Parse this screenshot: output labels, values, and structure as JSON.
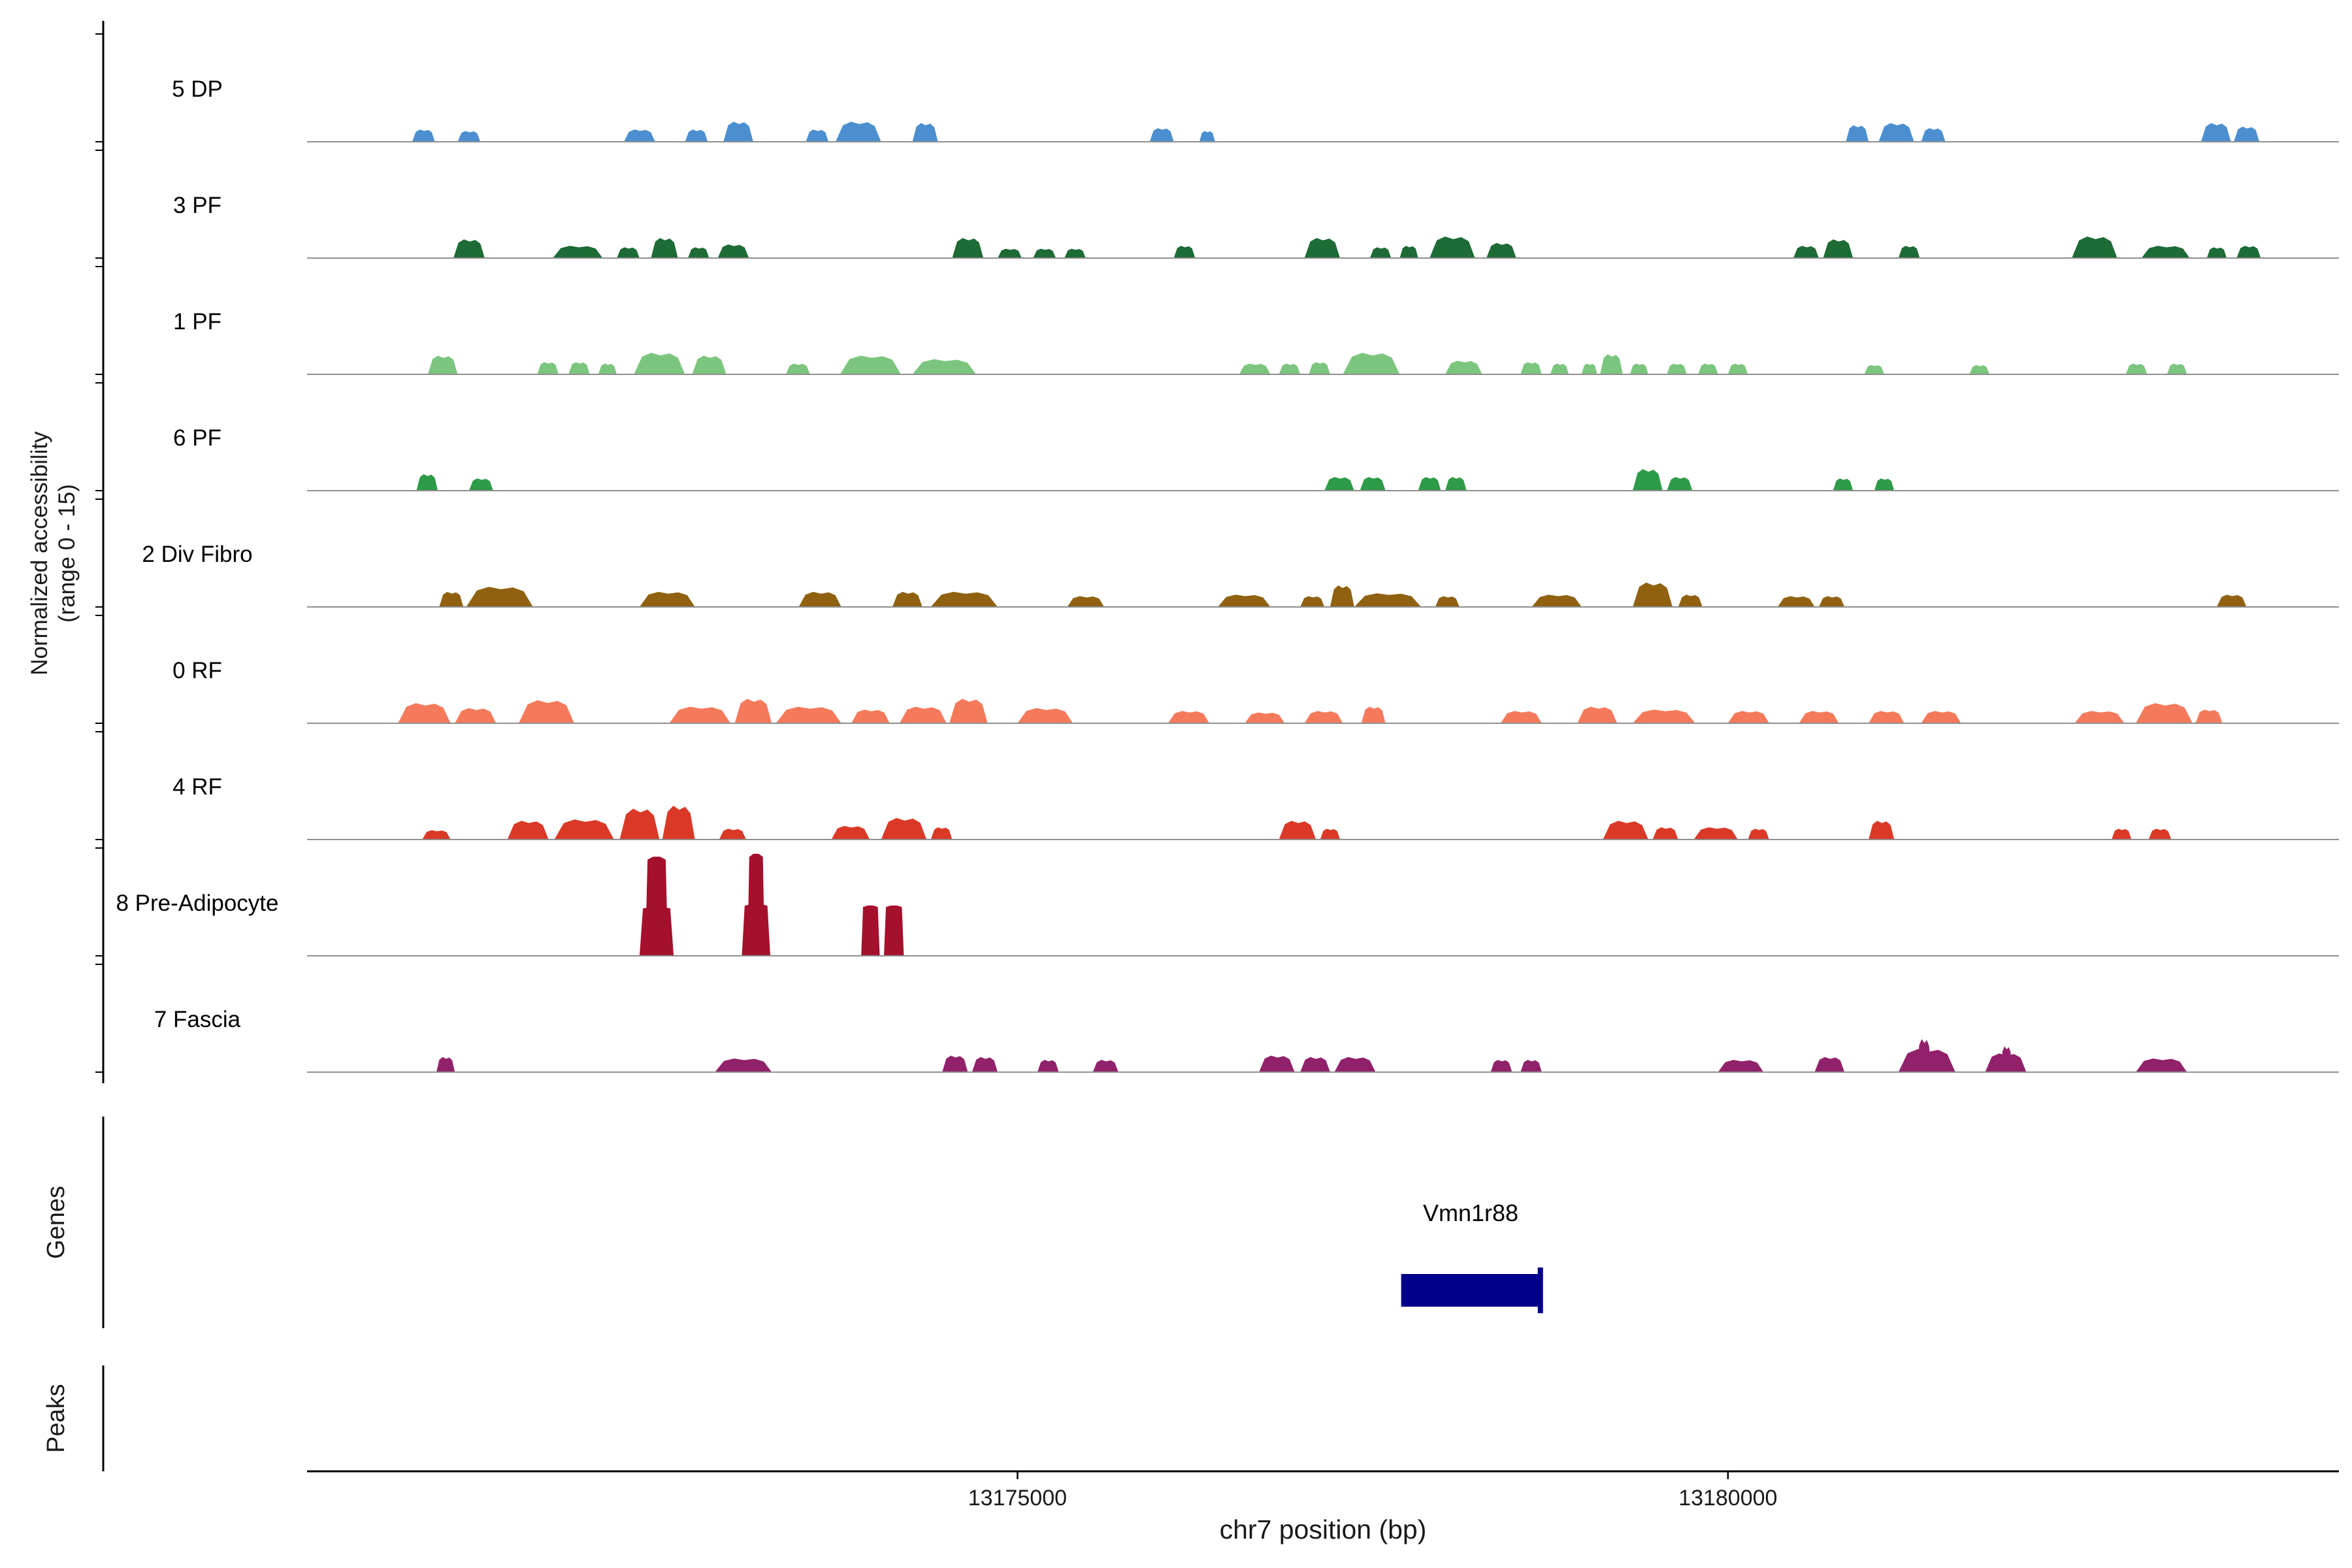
{
  "figure": {
    "y_axis_title_line1": "Normalized accessibility",
    "y_axis_title_line2": "(range 0 - 15)",
    "genes_section_label": "Genes",
    "peaks_section_label": "Peaks"
  },
  "x_axis": {
    "title": "chr7 position (bp)",
    "ticks": [
      {
        "bp": 13175000,
        "label": "13175000"
      },
      {
        "bp": 13180000,
        "label": "13180000"
      }
    ]
  },
  "chart_data": {
    "type": "area",
    "subtype": "genome-coverage-tracks",
    "chromosome": "chr7",
    "xlabel": "chr7 position (bp)",
    "ylabel": "Normalized accessibility (range 0 - 15)",
    "x_range": [
      13170000,
      13184300
    ],
    "y_range_per_track": [
      0,
      15
    ],
    "baseline_color": "#8f8f8f",
    "gene_color": "#00008B",
    "tracks": [
      {
        "label": "5 DP",
        "color": "#4B8FD0",
        "peaks": [
          [
            13170740,
            13170900,
            1.7
          ],
          [
            13171060,
            13171220,
            1.5
          ],
          [
            13172230,
            13172450,
            1.7
          ],
          [
            13172660,
            13172820,
            1.7
          ],
          [
            13172930,
            13173140,
            2.8
          ],
          [
            13173510,
            13173670,
            1.7
          ],
          [
            13173720,
            13174040,
            2.8
          ],
          [
            13174260,
            13174440,
            2.6
          ],
          [
            13175930,
            13176100,
            1.9
          ],
          [
            13176280,
            13176390,
            1.5
          ],
          [
            13180830,
            13180990,
            2.3
          ],
          [
            13181060,
            13181310,
            2.6
          ],
          [
            13181360,
            13181530,
            1.9
          ],
          [
            13183330,
            13183540,
            2.6
          ],
          [
            13183560,
            13183740,
            2.1
          ]
        ]
      },
      {
        "label": "3 PF",
        "color": "#1D6B35",
        "peaks": [
          [
            13171030,
            13171250,
            2.6
          ],
          [
            13171730,
            13172080,
            1.7
          ],
          [
            13172180,
            13172340,
            1.5
          ],
          [
            13172420,
            13172610,
            2.8
          ],
          [
            13172680,
            13172830,
            1.5
          ],
          [
            13172890,
            13173110,
            1.9
          ],
          [
            13174540,
            13174760,
            2.8
          ],
          [
            13174860,
            13175030,
            1.3
          ],
          [
            13175110,
            13175270,
            1.3
          ],
          [
            13175330,
            13175480,
            1.3
          ],
          [
            13176100,
            13176250,
            1.7
          ],
          [
            13177020,
            13177270,
            2.8
          ],
          [
            13177480,
            13177630,
            1.5
          ],
          [
            13177690,
            13177820,
            1.7
          ],
          [
            13177900,
            13178220,
            3.0
          ],
          [
            13178300,
            13178510,
            2.1
          ],
          [
            13180460,
            13180640,
            1.7
          ],
          [
            13180670,
            13180880,
            2.6
          ],
          [
            13181200,
            13181350,
            1.7
          ],
          [
            13182420,
            13182740,
            3.0
          ],
          [
            13182910,
            13183250,
            1.7
          ],
          [
            13183370,
            13183510,
            1.5
          ],
          [
            13183580,
            13183750,
            1.7
          ]
        ]
      },
      {
        "label": "1 PF",
        "color": "#7CC57E",
        "peaks": [
          [
            13170850,
            13171060,
            2.6
          ],
          [
            13171620,
            13171770,
            1.7
          ],
          [
            13171840,
            13171990,
            1.7
          ],
          [
            13172050,
            13172180,
            1.5
          ],
          [
            13172300,
            13172660,
            3.0
          ],
          [
            13172710,
            13172950,
            2.6
          ],
          [
            13173370,
            13173540,
            1.5
          ],
          [
            13173750,
            13174180,
            2.6
          ],
          [
            13174260,
            13174710,
            2.1
          ],
          [
            13176560,
            13176780,
            1.5
          ],
          [
            13176840,
            13176990,
            1.5
          ],
          [
            13177050,
            13177200,
            1.7
          ],
          [
            13177290,
            13177690,
            3.0
          ],
          [
            13178010,
            13178270,
            1.9
          ],
          [
            13178540,
            13178690,
            1.7
          ],
          [
            13178750,
            13178880,
            1.5
          ],
          [
            13178970,
            13179080,
            1.5
          ],
          [
            13179100,
            13179260,
            2.8
          ],
          [
            13179310,
            13179440,
            1.5
          ],
          [
            13179570,
            13179710,
            1.5
          ],
          [
            13179790,
            13179930,
            1.5
          ],
          [
            13180000,
            13180140,
            1.5
          ],
          [
            13180960,
            13181100,
            1.3
          ],
          [
            13181700,
            13181840,
            1.3
          ],
          [
            13182800,
            13182950,
            1.5
          ],
          [
            13183090,
            13183230,
            1.5
          ]
        ]
      },
      {
        "label": "6 PF",
        "color": "#2D9B47",
        "peaks": [
          [
            13170770,
            13170920,
            2.3
          ],
          [
            13171140,
            13171310,
            1.7
          ],
          [
            13177160,
            13177370,
            1.9
          ],
          [
            13177410,
            13177590,
            1.9
          ],
          [
            13177820,
            13177980,
            1.9
          ],
          [
            13178010,
            13178160,
            1.9
          ],
          [
            13179330,
            13179540,
            3.0
          ],
          [
            13179570,
            13179750,
            1.9
          ],
          [
            13180740,
            13180880,
            1.7
          ],
          [
            13181030,
            13181170,
            1.7
          ]
        ]
      },
      {
        "label": "2 Div Fibro",
        "color": "#8F6110",
        "peaks": [
          [
            13170930,
            13171100,
            2.1
          ],
          [
            13171120,
            13171590,
            2.8
          ],
          [
            13172340,
            13172730,
            2.1
          ],
          [
            13173460,
            13173760,
            2.1
          ],
          [
            13174120,
            13174330,
            2.1
          ],
          [
            13174390,
            13174860,
            2.1
          ],
          [
            13175350,
            13175610,
            1.5
          ],
          [
            13176410,
            13176780,
            1.7
          ],
          [
            13176990,
            13177160,
            1.5
          ],
          [
            13177200,
            13177370,
            3.0
          ],
          [
            13177370,
            13177840,
            1.9
          ],
          [
            13177940,
            13178110,
            1.5
          ],
          [
            13178620,
            13178970,
            1.7
          ],
          [
            13179330,
            13179610,
            3.4
          ],
          [
            13179650,
            13179820,
            1.7
          ],
          [
            13180350,
            13180610,
            1.5
          ],
          [
            13180640,
            13180820,
            1.5
          ],
          [
            13183440,
            13183650,
            1.7
          ]
        ]
      },
      {
        "label": "0 RF",
        "color": "#F47A5B",
        "peaks": [
          [
            13170640,
            13171010,
            2.8
          ],
          [
            13171040,
            13171330,
            2.1
          ],
          [
            13171490,
            13171880,
            3.2
          ],
          [
            13172550,
            13172980,
            2.3
          ],
          [
            13173010,
            13173270,
            3.4
          ],
          [
            13173300,
            13173760,
            2.3
          ],
          [
            13173830,
            13174100,
            1.9
          ],
          [
            13174170,
            13174500,
            2.3
          ],
          [
            13174520,
            13174790,
            3.4
          ],
          [
            13175000,
            13175390,
            2.1
          ],
          [
            13176060,
            13176350,
            1.7
          ],
          [
            13176600,
            13176880,
            1.5
          ],
          [
            13177020,
            13177290,
            1.7
          ],
          [
            13177420,
            13177590,
            2.3
          ],
          [
            13178400,
            13178690,
            1.7
          ],
          [
            13178940,
            13179220,
            2.3
          ],
          [
            13179330,
            13179770,
            1.9
          ],
          [
            13180000,
            13180290,
            1.7
          ],
          [
            13180500,
            13180780,
            1.7
          ],
          [
            13180990,
            13181240,
            1.7
          ],
          [
            13181360,
            13181640,
            1.7
          ],
          [
            13182440,
            13182790,
            1.7
          ],
          [
            13182870,
            13183270,
            2.8
          ],
          [
            13183290,
            13183480,
            1.9
          ]
        ]
      },
      {
        "label": "4 RF",
        "color": "#DB3927",
        "peaks": [
          [
            13170810,
            13171010,
            1.3
          ],
          [
            13171410,
            13171700,
            2.6
          ],
          [
            13171740,
            13172160,
            2.8
          ],
          [
            13172200,
            13172480,
            4.3
          ],
          [
            13172500,
            13172730,
            4.7
          ],
          [
            13172900,
            13173090,
            1.5
          ],
          [
            13173690,
            13173960,
            1.9
          ],
          [
            13174040,
            13174360,
            3.0
          ],
          [
            13174390,
            13174540,
            1.7
          ],
          [
            13176840,
            13177100,
            2.6
          ],
          [
            13177130,
            13177270,
            1.5
          ],
          [
            13179120,
            13179440,
            2.6
          ],
          [
            13179470,
            13179650,
            1.7
          ],
          [
            13179760,
            13180070,
            1.7
          ],
          [
            13180140,
            13180290,
            1.5
          ],
          [
            13180990,
            13181170,
            2.6
          ],
          [
            13182700,
            13182840,
            1.5
          ],
          [
            13182960,
            13183120,
            1.5
          ]
        ]
      },
      {
        "label": "8 Pre-Adipocyte",
        "color": "#A5102C",
        "peaks": [
          [
            13172340,
            13172580,
            6.8
          ],
          [
            13172380,
            13172540,
            13.8
          ],
          [
            13173060,
            13173260,
            7.2
          ],
          [
            13173100,
            13173220,
            14.2
          ],
          [
            13173900,
            13174030,
            7.0
          ],
          [
            13174060,
            13174200,
            7.0
          ]
        ]
      },
      {
        "label": "7 Fascia",
        "color": "#91216A",
        "peaks": [
          [
            13170910,
            13171040,
            2.1
          ],
          [
            13172870,
            13173270,
            1.9
          ],
          [
            13174470,
            13174650,
            2.3
          ],
          [
            13174680,
            13174860,
            2.1
          ],
          [
            13175140,
            13175290,
            1.7
          ],
          [
            13175530,
            13175710,
            1.7
          ],
          [
            13176700,
            13176950,
            2.3
          ],
          [
            13176990,
            13177200,
            2.1
          ],
          [
            13177230,
            13177520,
            2.1
          ],
          [
            13178330,
            13178480,
            1.7
          ],
          [
            13178540,
            13178690,
            1.7
          ],
          [
            13179930,
            13180250,
            1.7
          ],
          [
            13180610,
            13180820,
            2.1
          ],
          [
            13181200,
            13181600,
            3.2
          ],
          [
            13181330,
            13181430,
            4.6
          ],
          [
            13181810,
            13182100,
            2.6
          ],
          [
            13181920,
            13182000,
            3.6
          ],
          [
            13182870,
            13183230,
            1.9
          ]
        ]
      }
    ],
    "genes": [
      {
        "name": "Vmn1r88",
        "start": 13177700,
        "end": 13178680
      }
    ],
    "peaks": []
  }
}
